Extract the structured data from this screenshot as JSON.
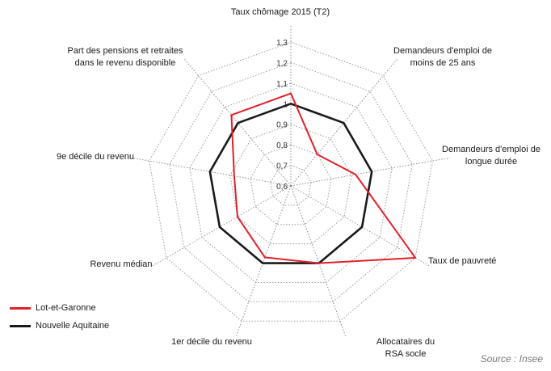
{
  "chart_data": {
    "type": "radar",
    "axes": [
      "Taux chômage 2015 (T2)",
      "Demandeurs d'emploi de moins de 25 ans",
      "Demandeurs d'emploi de longue durée",
      "Taux de pauvreté",
      "Allocataires du RSA socle",
      "1er décile du revenu",
      "Revenu médian",
      "9e décile du revenu",
      "Part des pensions et retraites dans le revenu disponible"
    ],
    "ticks": [
      "0,6",
      "0,7",
      "0,8",
      "0,9",
      "1",
      "1,1",
      "1,2",
      "1,3"
    ],
    "r_range": [
      0.6,
      1.3
    ],
    "series": [
      {
        "name": "Lot-et-Garonne",
        "color": "#e3202a",
        "values": [
          1.05,
          0.8,
          0.92,
          1.3,
          1.0,
          0.97,
          0.9,
          0.88,
          1.05
        ]
      },
      {
        "name": "Nouvelle Aquitaine",
        "color": "#1a1a1a",
        "values": [
          1.0,
          1.0,
          1.0,
          1.0,
          1.0,
          1.0,
          1.0,
          1.0,
          1.0
        ]
      }
    ],
    "grid": true,
    "legend_position": "bottom-left"
  },
  "source": "Source : Insee"
}
